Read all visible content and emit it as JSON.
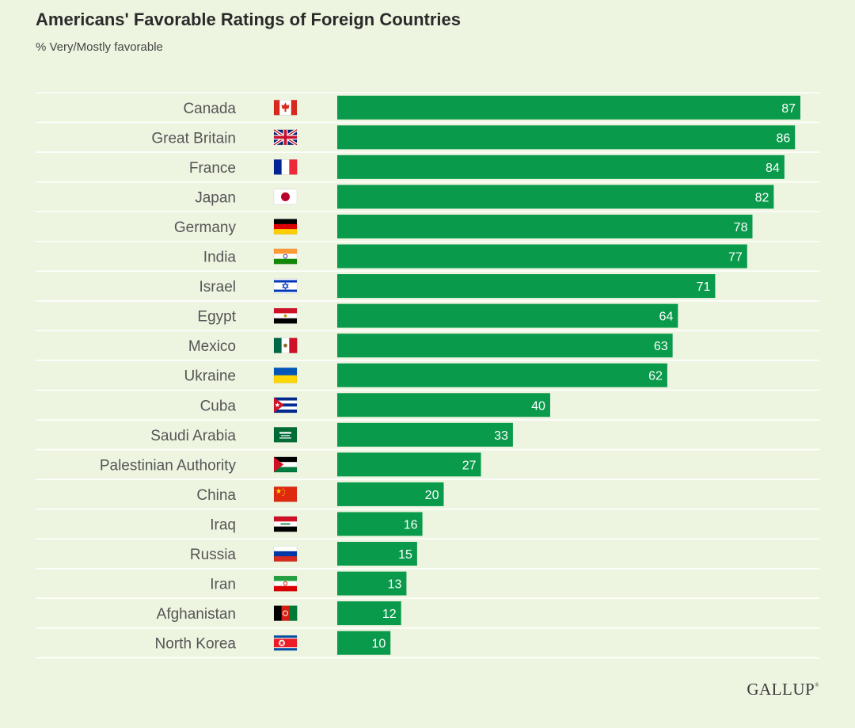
{
  "title": "Americans' Favorable Ratings of Foreign Countries",
  "subtitle": "% Very/Mostly favorable",
  "logo": "GALLUP",
  "colors": {
    "background": "#edf5e1",
    "bar": "#0a9a4b",
    "rule": "#ffffff",
    "label": "#555555",
    "value_text": "#ffffff"
  },
  "chart_data": {
    "type": "bar",
    "orientation": "horizontal",
    "categories": [
      "Canada",
      "Great Britain",
      "France",
      "Japan",
      "Germany",
      "India",
      "Israel",
      "Egypt",
      "Mexico",
      "Ukraine",
      "Cuba",
      "Saudi Arabia",
      "Palestinian Authority",
      "China",
      "Iraq",
      "Russia",
      "Iran",
      "Afghanistan",
      "North Korea"
    ],
    "values": [
      87,
      86,
      84,
      82,
      78,
      77,
      71,
      64,
      63,
      62,
      40,
      33,
      27,
      20,
      16,
      15,
      13,
      12,
      10
    ],
    "flag_icons": [
      "canada-flag-icon",
      "great-britain-flag-icon",
      "france-flag-icon",
      "japan-flag-icon",
      "germany-flag-icon",
      "india-flag-icon",
      "israel-flag-icon",
      "egypt-flag-icon",
      "mexico-flag-icon",
      "ukraine-flag-icon",
      "cuba-flag-icon",
      "saudi-arabia-flag-icon",
      "palestinian-authority-flag-icon",
      "china-flag-icon",
      "iraq-flag-icon",
      "russia-flag-icon",
      "iran-flag-icon",
      "afghanistan-flag-icon",
      "north-korea-flag-icon"
    ],
    "title": "Americans' Favorable Ratings of Foreign Countries",
    "subtitle": "% Very/Mostly favorable",
    "xlim": [
      0,
      100
    ],
    "data_labels": true,
    "grid": false,
    "legend": "none"
  }
}
